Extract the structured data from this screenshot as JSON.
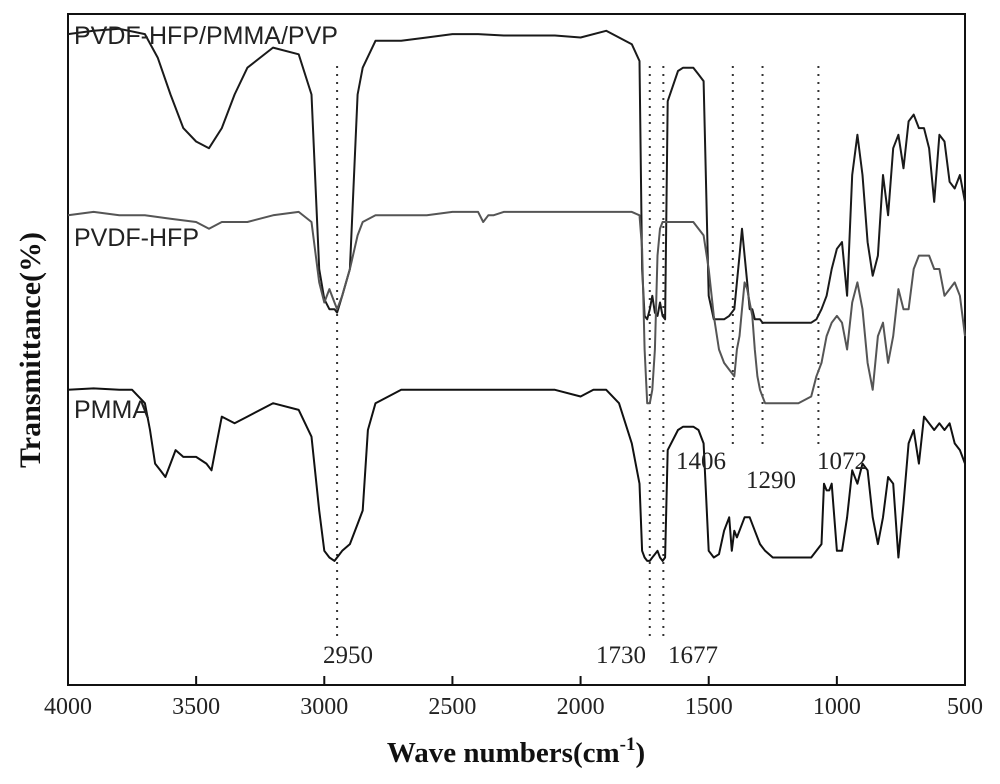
{
  "chart_data": {
    "type": "line",
    "title": "",
    "xlabel": "Wave numbers(cm",
    "xlabel_sup": "-1",
    "xlabel_end": ")",
    "ylabel": "Transmittance(%)",
    "xlim": [
      4000,
      500
    ],
    "x_ticks": [
      4000,
      3500,
      3000,
      2500,
      2000,
      1500,
      1000,
      500
    ],
    "reference_lines": [
      2950,
      1730,
      1677,
      1406,
      1290,
      1072
    ],
    "annotations": [
      {
        "text": "2950",
        "x": 2950
      },
      {
        "text": "1730",
        "x": 1730
      },
      {
        "text": "1677",
        "x": 1677
      },
      {
        "text": "1406",
        "x": 1406
      },
      {
        "text": "1290",
        "x": 1290
      },
      {
        "text": "1072",
        "x": 1072
      }
    ],
    "series": [
      {
        "name": "PVDF-HFP/PMMA/PVP",
        "color": "#1a1a1a",
        "x": [
          4000,
          3900,
          3800,
          3700,
          3650,
          3600,
          3550,
          3500,
          3450,
          3400,
          3350,
          3300,
          3200,
          3100,
          3050,
          3020,
          3000,
          2980,
          2960,
          2950,
          2930,
          2900,
          2870,
          2850,
          2800,
          2700,
          2600,
          2500,
          2400,
          2300,
          2200,
          2100,
          2000,
          1900,
          1800,
          1770,
          1760,
          1750,
          1740,
          1730,
          1720,
          1710,
          1700,
          1690,
          1680,
          1670,
          1660,
          1620,
          1600,
          1580,
          1560,
          1540,
          1520,
          1500,
          1480,
          1460,
          1440,
          1420,
          1400,
          1390,
          1380,
          1370,
          1360,
          1350,
          1340,
          1330,
          1320,
          1310,
          1300,
          1290,
          1280,
          1250,
          1200,
          1150,
          1100,
          1080,
          1060,
          1040,
          1020,
          1000,
          980,
          960,
          940,
          920,
          900,
          880,
          860,
          840,
          820,
          800,
          780,
          760,
          740,
          720,
          700,
          680,
          660,
          640,
          620,
          600,
          580,
          560,
          540,
          520,
          500
        ],
        "y": [
          0.97,
          0.975,
          0.978,
          0.97,
          0.935,
          0.88,
          0.83,
          0.81,
          0.8,
          0.83,
          0.88,
          0.92,
          0.95,
          0.94,
          0.88,
          0.62,
          0.575,
          0.56,
          0.56,
          0.555,
          0.58,
          0.62,
          0.88,
          0.92,
          0.96,
          0.96,
          0.965,
          0.97,
          0.97,
          0.968,
          0.968,
          0.968,
          0.965,
          0.975,
          0.955,
          0.93,
          0.62,
          0.55,
          0.545,
          0.56,
          0.58,
          0.555,
          0.55,
          0.57,
          0.55,
          0.545,
          0.87,
          0.915,
          0.92,
          0.92,
          0.92,
          0.91,
          0.9,
          0.58,
          0.545,
          0.545,
          0.545,
          0.55,
          0.56,
          0.6,
          0.64,
          0.68,
          0.64,
          0.6,
          0.56,
          0.56,
          0.545,
          0.545,
          0.545,
          0.54,
          0.54,
          0.54,
          0.54,
          0.54,
          0.54,
          0.545,
          0.56,
          0.58,
          0.62,
          0.65,
          0.66,
          0.58,
          0.76,
          0.82,
          0.76,
          0.66,
          0.61,
          0.64,
          0.76,
          0.7,
          0.8,
          0.82,
          0.77,
          0.84,
          0.85,
          0.83,
          0.83,
          0.8,
          0.72,
          0.82,
          0.81,
          0.75,
          0.74,
          0.76,
          0.72
        ]
      },
      {
        "name": "PVDF-HFP",
        "color": "#555555",
        "x": [
          4000,
          3900,
          3800,
          3700,
          3600,
          3500,
          3450,
          3400,
          3300,
          3200,
          3100,
          3050,
          3020,
          3000,
          2980,
          2960,
          2950,
          2930,
          2900,
          2870,
          2850,
          2800,
          2700,
          2600,
          2500,
          2400,
          2380,
          2360,
          2340,
          2300,
          2200,
          2100,
          2000,
          1900,
          1800,
          1770,
          1760,
          1750,
          1740,
          1730,
          1720,
          1710,
          1700,
          1690,
          1680,
          1670,
          1660,
          1620,
          1600,
          1580,
          1560,
          1540,
          1520,
          1500,
          1480,
          1460,
          1440,
          1420,
          1400,
          1390,
          1380,
          1370,
          1360,
          1350,
          1340,
          1330,
          1320,
          1310,
          1300,
          1290,
          1280,
          1250,
          1200,
          1150,
          1100,
          1080,
          1060,
          1040,
          1020,
          1000,
          980,
          960,
          940,
          920,
          900,
          880,
          860,
          840,
          820,
          800,
          780,
          760,
          740,
          720,
          700,
          680,
          660,
          640,
          620,
          600,
          580,
          560,
          540,
          520,
          500
        ],
        "y": [
          0.7,
          0.705,
          0.7,
          0.7,
          0.695,
          0.69,
          0.68,
          0.69,
          0.69,
          0.7,
          0.705,
          0.69,
          0.6,
          0.57,
          0.59,
          0.57,
          0.56,
          0.58,
          0.62,
          0.67,
          0.69,
          0.7,
          0.7,
          0.7,
          0.705,
          0.705,
          0.69,
          0.7,
          0.7,
          0.705,
          0.705,
          0.705,
          0.705,
          0.705,
          0.705,
          0.7,
          0.65,
          0.5,
          0.42,
          0.42,
          0.44,
          0.5,
          0.64,
          0.68,
          0.69,
          0.69,
          0.69,
          0.69,
          0.69,
          0.69,
          0.69,
          0.68,
          0.67,
          0.62,
          0.55,
          0.5,
          0.48,
          0.47,
          0.46,
          0.5,
          0.52,
          0.56,
          0.6,
          0.59,
          0.57,
          0.55,
          0.5,
          0.46,
          0.44,
          0.43,
          0.42,
          0.42,
          0.42,
          0.42,
          0.43,
          0.46,
          0.48,
          0.52,
          0.54,
          0.55,
          0.54,
          0.5,
          0.57,
          0.6,
          0.56,
          0.48,
          0.44,
          0.52,
          0.54,
          0.48,
          0.52,
          0.59,
          0.56,
          0.56,
          0.62,
          0.64,
          0.64,
          0.64,
          0.62,
          0.62,
          0.58,
          0.59,
          0.6,
          0.58,
          0.52
        ]
      },
      {
        "name": "PMMA",
        "color": "#111111",
        "x": [
          4000,
          3900,
          3800,
          3750,
          3700,
          3680,
          3660,
          3640,
          3620,
          3600,
          3580,
          3550,
          3500,
          3460,
          3440,
          3420,
          3400,
          3350,
          3300,
          3200,
          3100,
          3050,
          3020,
          3000,
          2980,
          2960,
          2950,
          2930,
          2900,
          2870,
          2850,
          2830,
          2800,
          2750,
          2700,
          2600,
          2500,
          2400,
          2300,
          2200,
          2100,
          2000,
          1950,
          1900,
          1850,
          1800,
          1770,
          1760,
          1750,
          1740,
          1730,
          1720,
          1710,
          1700,
          1690,
          1680,
          1670,
          1660,
          1620,
          1600,
          1580,
          1560,
          1540,
          1520,
          1500,
          1480,
          1460,
          1440,
          1420,
          1410,
          1400,
          1390,
          1380,
          1360,
          1340,
          1320,
          1300,
          1280,
          1250,
          1200,
          1150,
          1100,
          1080,
          1060,
          1050,
          1040,
          1030,
          1020,
          1000,
          980,
          960,
          940,
          920,
          900,
          880,
          860,
          840,
          820,
          800,
          780,
          760,
          740,
          720,
          700,
          680,
          660,
          640,
          620,
          600,
          580,
          560,
          540,
          520,
          500
        ],
        "y": [
          0.44,
          0.442,
          0.44,
          0.44,
          0.42,
          0.38,
          0.33,
          0.32,
          0.31,
          0.33,
          0.35,
          0.34,
          0.34,
          0.33,
          0.32,
          0.36,
          0.4,
          0.39,
          0.4,
          0.42,
          0.41,
          0.37,
          0.26,
          0.2,
          0.19,
          0.185,
          0.19,
          0.2,
          0.21,
          0.24,
          0.26,
          0.38,
          0.42,
          0.43,
          0.44,
          0.44,
          0.44,
          0.44,
          0.44,
          0.44,
          0.44,
          0.43,
          0.44,
          0.44,
          0.42,
          0.36,
          0.3,
          0.2,
          0.19,
          0.185,
          0.185,
          0.19,
          0.195,
          0.2,
          0.19,
          0.185,
          0.19,
          0.35,
          0.38,
          0.385,
          0.385,
          0.385,
          0.38,
          0.36,
          0.2,
          0.19,
          0.195,
          0.23,
          0.25,
          0.2,
          0.23,
          0.22,
          0.23,
          0.25,
          0.25,
          0.23,
          0.21,
          0.2,
          0.19,
          0.19,
          0.19,
          0.19,
          0.2,
          0.21,
          0.3,
          0.29,
          0.29,
          0.3,
          0.2,
          0.2,
          0.25,
          0.32,
          0.3,
          0.33,
          0.32,
          0.25,
          0.21,
          0.25,
          0.31,
          0.3,
          0.19,
          0.27,
          0.36,
          0.38,
          0.33,
          0.4,
          0.39,
          0.38,
          0.39,
          0.38,
          0.39,
          0.36,
          0.35,
          0.33
        ]
      }
    ]
  }
}
